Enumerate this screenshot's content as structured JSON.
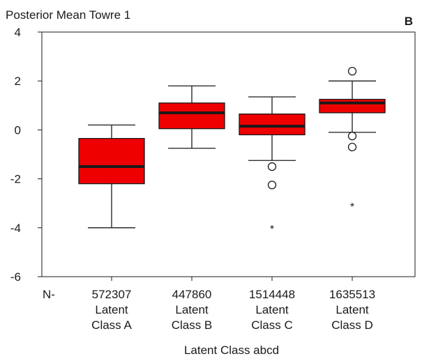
{
  "chart_data": {
    "type": "boxplot",
    "title": "Posterior Mean Towre 1",
    "panel_label": "B",
    "xlabel": "Latent Class abcd",
    "ylabel": "",
    "ylim": [
      -6,
      4
    ],
    "yticks": [
      4,
      2,
      0,
      -2,
      -4,
      -6
    ],
    "n_prefix": "N-",
    "box_color": "#ee0000",
    "grid": false,
    "categories": [
      {
        "n": "572307",
        "line1": "Latent",
        "line2": "Class A",
        "whisker_low": -4.0,
        "q1": -2.2,
        "median": -1.5,
        "q3": -0.35,
        "whisker_high": 0.2,
        "outliers": [],
        "extremes": []
      },
      {
        "n": "447860",
        "line1": "Latent",
        "line2": "Class B",
        "whisker_low": -0.75,
        "q1": 0.05,
        "median": 0.7,
        "q3": 1.1,
        "whisker_high": 1.8,
        "outliers": [],
        "extremes": []
      },
      {
        "n": "1514448",
        "line1": "Latent",
        "line2": "Class C",
        "whisker_low": -1.25,
        "q1": -0.2,
        "median": 0.15,
        "q3": 0.65,
        "whisker_high": 1.35,
        "outliers": [
          -1.5,
          -2.25
        ],
        "extremes": [
          -4.0
        ]
      },
      {
        "n": "1635513",
        "line1": "Latent",
        "line2": "Class D",
        "whisker_low": -0.1,
        "q1": 0.7,
        "median": 1.1,
        "q3": 1.25,
        "whisker_high": 2.0,
        "outliers": [
          2.4,
          -0.25,
          -0.7
        ],
        "extremes": [
          -3.1
        ]
      }
    ]
  }
}
